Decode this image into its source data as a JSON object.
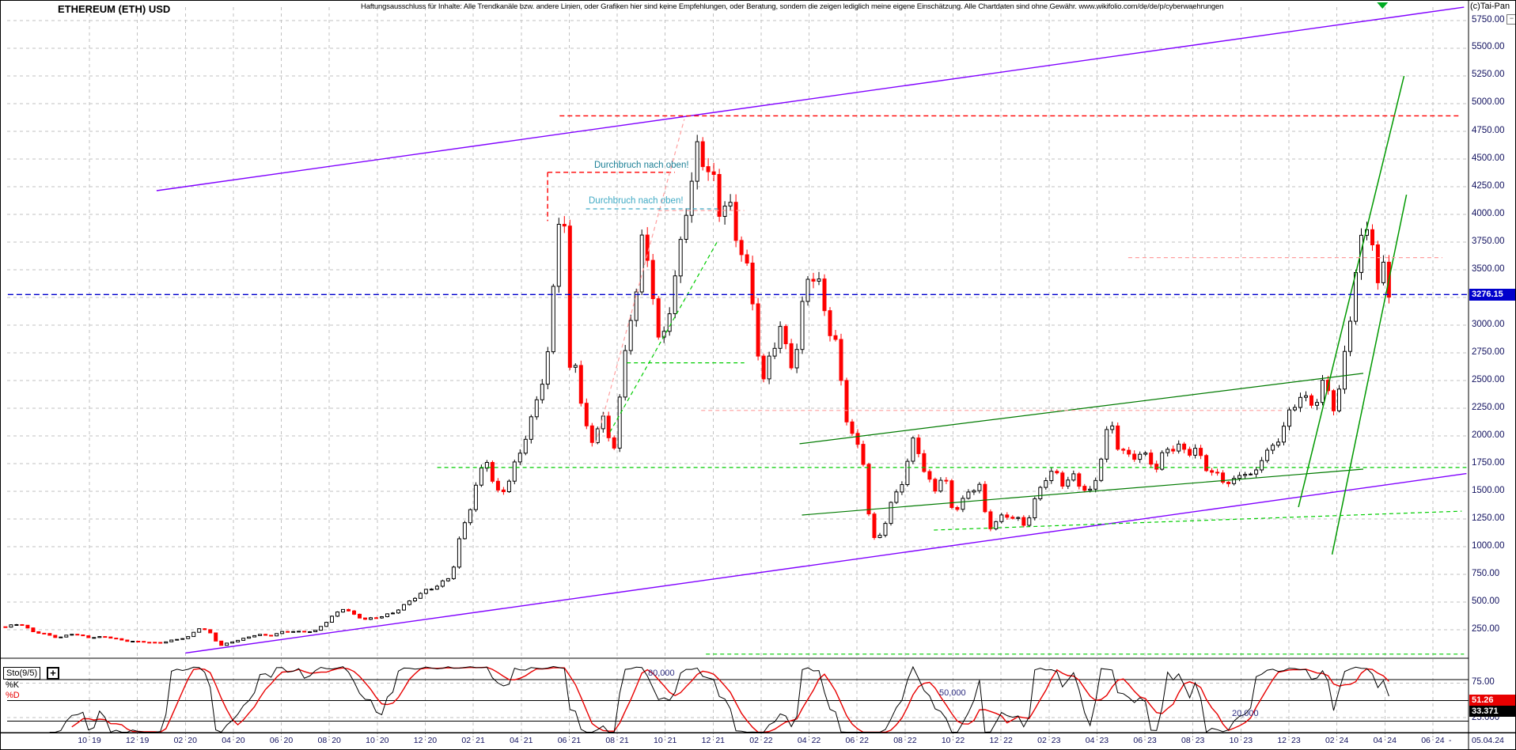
{
  "header": {
    "title": "ETHEREUM (ETH) USD",
    "disclaimer": "Haftungsausschluss für Inhalte: Alle Trendkanäle bzw. andere Linien, oder Grafiken hier sind keine Empfehlungen, oder Beratung, sondern die zeigen lediglich meine eigene Einschätzung. Alle Chartdaten sind ohne Gewähr. www.wikifolio.com/de/de/p/cyberwaehrungen",
    "copyright": "(c)Tai-Pan"
  },
  "price_axis": {
    "min": 250,
    "max": 5750,
    "step": 250,
    "decimals": 2,
    "current_price_label": "3276.15",
    "minimize_icon": "−"
  },
  "x_axis": {
    "labels": [
      "10.19",
      "12.19",
      "02.20",
      "04.20",
      "06.20",
      "08.20",
      "10.20",
      "12.20",
      "02.21",
      "04.21",
      "06.21",
      "08.21",
      "10.21",
      "12.21",
      "02.22",
      "04.22",
      "06.22",
      "08.22",
      "10.22",
      "12.22",
      "02.23",
      "04.23",
      "06.23",
      "08.23",
      "10.23",
      "12.23",
      "02.24",
      "04.24",
      "06.24"
    ],
    "end_dash": "-",
    "last_date": "05.04.24"
  },
  "indicator": {
    "label": "Sto(9/5)",
    "expand_icon": "+",
    "k_label": "%K",
    "d_label": "%D",
    "k_value": "33.371",
    "d_value": "51.26",
    "axis_labels": [
      "75.00",
      "25.000"
    ],
    "level_labels": [
      "80,000",
      "50,000",
      "20,000"
    ]
  },
  "annotations": [
    {
      "text": "Durchbruch nach oben!",
      "t": 24.55,
      "price": 4430,
      "color": "#1b7f95"
    },
    {
      "text": "Durchbruch nach oben!",
      "t": 24.3,
      "price": 4110,
      "color": "#3fa9c4"
    }
  ],
  "colors": {
    "up_candle": "#000000",
    "down_candle": "#fe0000",
    "grid": "#c2c2c2",
    "purple": "#8000ff",
    "green_solid": "#007a00",
    "green_steep": "#009900",
    "green_dashed": "#00cc00",
    "red_dashed": "#ff0000",
    "pink_dashed": "#ff9f9f",
    "blue_line": "#0000cc",
    "badge_blue": "#0000cc",
    "badge_red": "#e80000",
    "badge_black": "#000000",
    "axis_text": "#10105e",
    "level_text": "#2c2c80"
  },
  "chart_data": {
    "type": "candlestick",
    "title": "ETHEREUM (ETH) USD",
    "timebase_note": "t = months since 2019-06-15, weekly candles",
    "ylim": [
      250,
      5750
    ],
    "grid": true,
    "last_price": 3276.15,
    "last_date": "05.04.24",
    "series_anchors_t_price": [
      [
        0,
        270
      ],
      [
        0.6,
        308
      ],
      [
        1.1,
        240
      ],
      [
        1.6,
        213
      ],
      [
        2.2,
        172
      ],
      [
        2.8,
        218
      ],
      [
        3.5,
        180
      ],
      [
        4.2,
        183
      ],
      [
        5.0,
        152
      ],
      [
        5.7,
        140
      ],
      [
        6.4,
        128
      ],
      [
        7.0,
        160
      ],
      [
        7.6,
        183
      ],
      [
        8.1,
        265
      ],
      [
        8.5,
        228
      ],
      [
        8.93,
        106
      ],
      [
        9.3,
        134
      ],
      [
        10.0,
        172
      ],
      [
        10.5,
        208
      ],
      [
        11.0,
        198
      ],
      [
        11.6,
        235
      ],
      [
        12.2,
        228
      ],
      [
        12.9,
        241
      ],
      [
        13.4,
        330
      ],
      [
        13.8,
        396
      ],
      [
        14.1,
        440
      ],
      [
        14.5,
        386
      ],
      [
        15.0,
        350
      ],
      [
        15.6,
        366
      ],
      [
        16.1,
        388
      ],
      [
        16.6,
        470
      ],
      [
        17.1,
        560
      ],
      [
        17.6,
        612
      ],
      [
        18.1,
        642
      ],
      [
        18.6,
        748
      ],
      [
        19.0,
        1150
      ],
      [
        19.4,
        1385
      ],
      [
        19.8,
        1655
      ],
      [
        20.1,
        1785
      ],
      [
        20.4,
        1455
      ],
      [
        20.9,
        1575
      ],
      [
        21.4,
        1845
      ],
      [
        21.9,
        2085
      ],
      [
        22.3,
        2425
      ],
      [
        22.65,
        2775
      ],
      [
        22.9,
        3560
      ],
      [
        23.1,
        4160
      ],
      [
        23.25,
        4372
      ],
      [
        23.45,
        2485
      ],
      [
        23.7,
        2755
      ],
      [
        24.0,
        2255
      ],
      [
        24.35,
        1885
      ],
      [
        24.7,
        2125
      ],
      [
        25.0,
        2185
      ],
      [
        25.3,
        1825
      ],
      [
        25.7,
        2455
      ],
      [
        26.0,
        3005
      ],
      [
        26.3,
        3255
      ],
      [
        26.6,
        3905
      ],
      [
        26.9,
        3505
      ],
      [
        27.2,
        2855
      ],
      [
        27.6,
        3055
      ],
      [
        27.9,
        3305
      ],
      [
        28.3,
        3985
      ],
      [
        28.6,
        4255
      ],
      [
        28.9,
        4785
      ],
      [
        29.2,
        4455
      ],
      [
        29.5,
        4305
      ],
      [
        29.8,
        3955
      ],
      [
        30.1,
        4085
      ],
      [
        30.4,
        3805
      ],
      [
        30.8,
        3695
      ],
      [
        31.2,
        3155
      ],
      [
        31.55,
        2425
      ],
      [
        31.9,
        2705
      ],
      [
        32.3,
        2955
      ],
      [
        32.7,
        2655
      ],
      [
        33.0,
        2855
      ],
      [
        33.4,
        3455
      ],
      [
        33.8,
        3405
      ],
      [
        34.2,
        3025
      ],
      [
        34.6,
        2855
      ],
      [
        35.0,
        2255
      ],
      [
        35.4,
        1955
      ],
      [
        35.8,
        1725
      ],
      [
        36.1,
        1015
      ],
      [
        36.5,
        1125
      ],
      [
        37.0,
        1455
      ],
      [
        37.5,
        1655
      ],
      [
        37.9,
        1985
      ],
      [
        38.3,
        1655
      ],
      [
        38.7,
        1525
      ],
      [
        39.1,
        1685
      ],
      [
        39.5,
        1315
      ],
      [
        39.9,
        1385
      ],
      [
        40.3,
        1525
      ],
      [
        40.7,
        1565
      ],
      [
        40.9,
        1185
      ],
      [
        41.3,
        1235
      ],
      [
        41.7,
        1275
      ],
      [
        42.1,
        1235
      ],
      [
        42.5,
        1195
      ],
      [
        42.9,
        1425
      ],
      [
        43.3,
        1635
      ],
      [
        43.7,
        1655
      ],
      [
        44.1,
        1545
      ],
      [
        44.5,
        1635
      ],
      [
        44.9,
        1565
      ],
      [
        45.3,
        1485
      ],
      [
        45.7,
        1825
      ],
      [
        46.05,
        2105
      ],
      [
        46.4,
        1895
      ],
      [
        46.8,
        1835
      ],
      [
        47.2,
        1865
      ],
      [
        47.6,
        1785
      ],
      [
        48.0,
        1685
      ],
      [
        48.4,
        1885
      ],
      [
        48.8,
        1935
      ],
      [
        49.2,
        1885
      ],
      [
        49.6,
        1855
      ],
      [
        50.0,
        1705
      ],
      [
        50.4,
        1645
      ],
      [
        50.8,
        1625
      ],
      [
        51.2,
        1595
      ],
      [
        51.6,
        1685
      ],
      [
        52.0,
        1575
      ],
      [
        52.4,
        1835
      ],
      [
        52.8,
        1905
      ],
      [
        53.2,
        2075
      ],
      [
        53.6,
        2205
      ],
      [
        54.0,
        2345
      ],
      [
        54.35,
        2255
      ],
      [
        54.7,
        2385
      ],
      [
        55.0,
        2555
      ],
      [
        55.3,
        2255
      ],
      [
        55.65,
        2405
      ],
      [
        56.0,
        2955
      ],
      [
        56.3,
        3485
      ],
      [
        56.6,
        3855
      ],
      [
        56.9,
        4090
      ],
      [
        57.15,
        3255
      ],
      [
        57.4,
        3625
      ],
      [
        57.67,
        3276.15
      ]
    ],
    "trendlines": [
      {
        "name": "channel-upper-purple",
        "color": "#8000ff",
        "width": 1.4,
        "dash": null,
        "pts": [
          [
            6.3,
            4214
          ],
          [
            60.8,
            5871
          ]
        ]
      },
      {
        "name": "channel-lower-purple",
        "color": "#8000ff",
        "width": 1.4,
        "dash": null,
        "pts": [
          [
            7.5,
            40
          ],
          [
            60.9,
            1660
          ]
        ]
      },
      {
        "name": "trend-mid-upper-green",
        "color": "#007a00",
        "width": 1.2,
        "dash": null,
        "pts": [
          [
            33.1,
            1929
          ],
          [
            56.6,
            2565
          ]
        ]
      },
      {
        "name": "trend-mid-lower-green",
        "color": "#007a00",
        "width": 1.2,
        "dash": null,
        "pts": [
          [
            33.2,
            1286
          ],
          [
            56.6,
            1700
          ]
        ]
      },
      {
        "name": "trend-steep-green-1",
        "color": "#009900",
        "width": 1.5,
        "dash": null,
        "pts": [
          [
            53.9,
            1357
          ],
          [
            58.3,
            5250
          ]
        ]
      },
      {
        "name": "trend-steep-green-2",
        "color": "#009900",
        "width": 1.5,
        "dash": null,
        "pts": [
          [
            55.3,
            929
          ],
          [
            58.4,
            4178
          ]
        ]
      },
      {
        "name": "support-green-dashed",
        "color": "#00cc00",
        "width": 1.2,
        "dash": "5 4",
        "pts": [
          [
            18.0,
            1715
          ],
          [
            60.9,
            1715
          ]
        ]
      },
      {
        "name": "level-green-dashed",
        "color": "#00cc00",
        "width": 1.2,
        "dash": "5 4",
        "pts": [
          [
            25.9,
            2660
          ],
          [
            30.8,
            2660
          ]
        ]
      },
      {
        "name": "steep-green-dashed",
        "color": "#00cc00",
        "width": 1.2,
        "dash": "5 4",
        "pts": [
          [
            25.2,
            2035
          ],
          [
            29.66,
            3750
          ]
        ]
      },
      {
        "name": "low-green-dashed-diagonal",
        "color": "#00cc00",
        "width": 1.2,
        "dash": "5 4",
        "pts": [
          [
            38.7,
            1150
          ],
          [
            60.7,
            1321
          ]
        ]
      },
      {
        "name": "bottom-green-dashed",
        "color": "#00cc00",
        "width": 1.2,
        "dash": "5 4",
        "pts": [
          [
            29.2,
            30
          ],
          [
            60.8,
            30
          ]
        ]
      },
      {
        "name": "ath-red-dashed",
        "color": "#ff0000",
        "width": 1.4,
        "dash": "6 4",
        "pts": [
          [
            23.1,
            4890
          ],
          [
            60.7,
            4890
          ]
        ]
      },
      {
        "name": "breakout-red-dashed-h",
        "color": "#ff0000",
        "width": 1.4,
        "dash": "6 4",
        "pts": [
          [
            22.6,
            4380
          ],
          [
            27.9,
            4380
          ]
        ]
      },
      {
        "name": "breakout-red-dashed-v",
        "color": "#ff0000",
        "width": 1.4,
        "dash": "6 4",
        "pts": [
          [
            22.6,
            4380
          ],
          [
            22.6,
            3940
          ]
        ]
      },
      {
        "name": "steep-pink-dashed",
        "color": "#ff9f9f",
        "width": 1.2,
        "dash": "5 4",
        "pts": [
          [
            24.6,
            1930
          ],
          [
            28.3,
            4860
          ]
        ]
      },
      {
        "name": "pink-dashed-a",
        "color": "#ff9f9f",
        "width": 1.2,
        "dash": "5 4",
        "pts": [
          [
            27.2,
            4035
          ],
          [
            30.8,
            4035
          ]
        ]
      },
      {
        "name": "pink-dashed-b",
        "color": "#ff9f9f",
        "width": 1.2,
        "dash": "5 4",
        "pts": [
          [
            46.8,
            3610
          ],
          [
            59.9,
            3610
          ]
        ]
      },
      {
        "name": "pink-dashed-c",
        "color": "#ff9f9f",
        "width": 1.2,
        "dash": "5 4",
        "pts": [
          [
            29.0,
            2230
          ],
          [
            53.2,
            2230
          ]
        ]
      },
      {
        "name": "annotation-teal-dashed",
        "color": "#3fa9c4",
        "width": 1.2,
        "dash": "5 4",
        "pts": [
          [
            24.2,
            4050
          ],
          [
            29.7,
            4050
          ]
        ]
      },
      {
        "name": "current-price-line",
        "color": "#0000cc",
        "width": 1.4,
        "dash": "7 4",
        "pts": [
          [
            0.1,
            3276.15
          ],
          [
            61,
            3276.15
          ]
        ]
      }
    ],
    "markers": [
      {
        "type": "triangle-down",
        "t": 57.4,
        "at": "top",
        "color": "#00aa22"
      }
    ],
    "indicator_panel": {
      "name": "Sto(9/5)",
      "k_period": 9,
      "d_period": 5,
      "levels": [
        80,
        50,
        20
      ],
      "range": [
        0,
        100
      ],
      "k_last": 33.371,
      "d_last": 51.26
    }
  }
}
